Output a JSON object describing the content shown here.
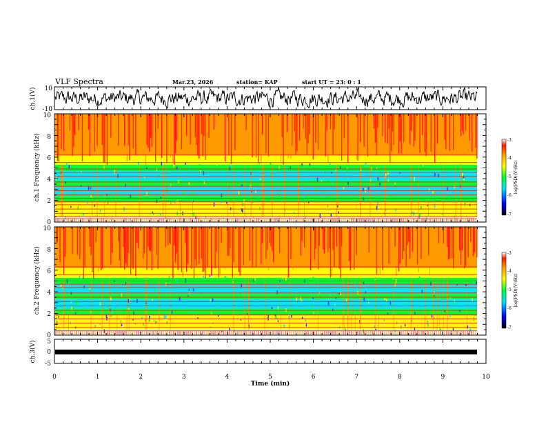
{
  "header": {
    "title": "VLF Spectra",
    "date": "Mar.23, 2026",
    "station": "station= KAP",
    "start": "start  UT =   23: 0  : 1"
  },
  "chart_data": [
    {
      "type": "line",
      "panel": "waveform_ch1",
      "ylabel": "ch.1(V)",
      "ylim": [
        -10,
        10
      ],
      "yticks": [
        "10",
        "-10"
      ],
      "series": [
        {
          "name": "ch.1 waveform",
          "description": "noisy signal oscillating between about -8 and 8 V"
        }
      ]
    },
    {
      "type": "heatmap",
      "panel": "spectrogram_ch1",
      "ylabel": "ch.1 Frequency (kHz)",
      "ylim": [
        0,
        10
      ],
      "yticks": [
        "0",
        "2",
        "4",
        "6",
        "8",
        "10"
      ],
      "horizontal_lines_khz": [
        0.3,
        0.5,
        0.8,
        1.2,
        1.6,
        1.9,
        2.2,
        2.5,
        2.9,
        3.3,
        3.7,
        4.2,
        4.6,
        4.9,
        5.5,
        6.2
      ],
      "colorbar": {
        "label": "log(PSD)(V²/Hz)",
        "range": [
          -7,
          -3
        ],
        "ticks": [
          "-3",
          "-4",
          "-5",
          "-6",
          "-7"
        ]
      }
    },
    {
      "type": "heatmap",
      "panel": "spectrogram_ch2",
      "ylabel": "ch.2 Frequency (kHz)",
      "ylim": [
        0,
        10
      ],
      "yticks": [
        "0",
        "2",
        "4",
        "6",
        "8",
        "10"
      ],
      "horizontal_lines_khz": [
        0.4,
        0.7,
        1.1,
        1.5,
        1.9,
        2.3,
        2.7,
        3.1,
        3.5,
        3.9,
        4.4,
        4.7,
        5.0,
        5.6,
        6.3
      ],
      "colorbar": {
        "label": "log(PSD)(V²/Hz)",
        "range": [
          -7,
          -3
        ],
        "ticks": [
          "-3",
          "-4",
          "-5",
          "-6",
          "-7"
        ]
      }
    },
    {
      "type": "line",
      "panel": "waveform_ch3",
      "ylabel": "ch.3(V)",
      "ylim": [
        -5,
        5
      ],
      "yticks": [
        "5",
        "0",
        "-5"
      ],
      "series": [
        {
          "name": "ch.3 signal",
          "description": "thick flat band near -1 V"
        }
      ]
    }
  ],
  "xaxis": {
    "label": "Time  (min)",
    "ticks": [
      "0",
      "1",
      "2",
      "3",
      "4",
      "5",
      "6",
      "7",
      "8",
      "9",
      "10"
    ],
    "range": [
      0,
      10
    ]
  },
  "colors": {
    "red": "#ff1e00",
    "orange": "#ff9a00",
    "yellow": "#ffff00",
    "green": "#00ff32",
    "cyan": "#00e6ff",
    "blue": "#1e3cff",
    "white": "#ffffff"
  }
}
